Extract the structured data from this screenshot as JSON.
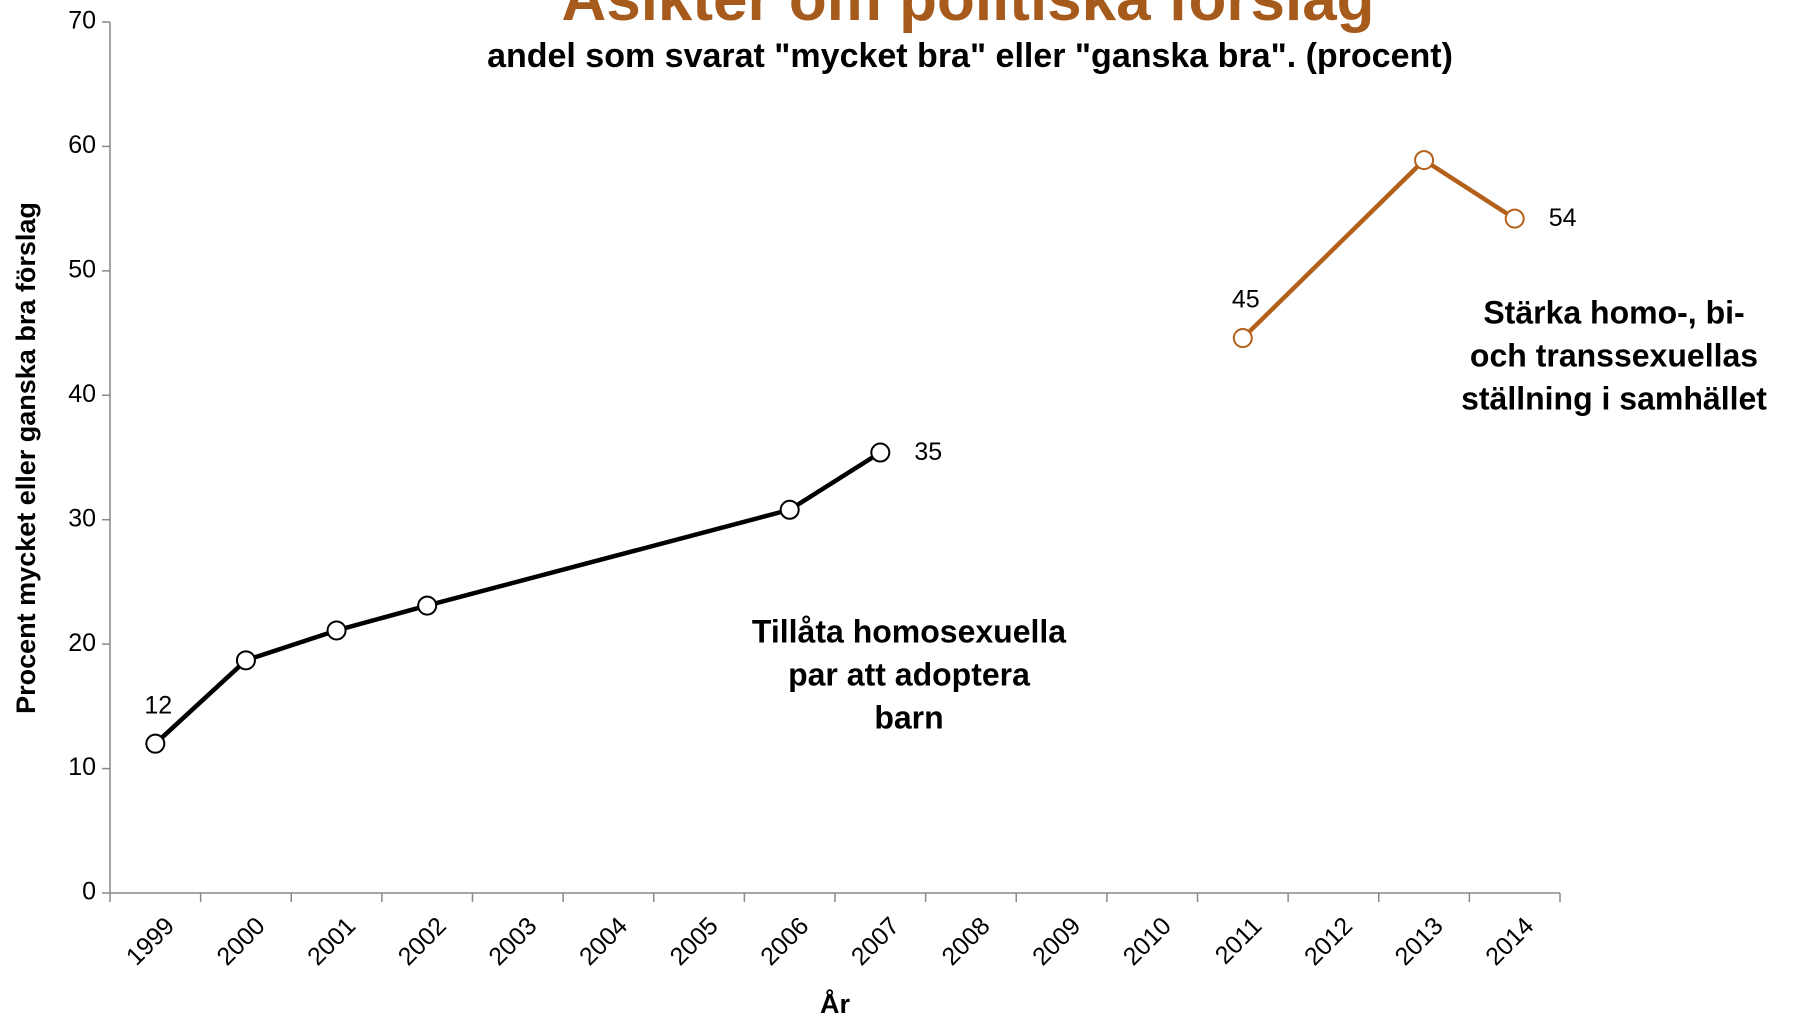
{
  "chart_data": {
    "type": "line",
    "title": "Åsikter om politiska förslag",
    "title_color": "#a65a1c",
    "subtitle": "andel som svarat \"mycket bra\" eller \"ganska bra\". (procent)",
    "y_label": "Procent mycket eller ganska bra förslag",
    "x_label": "År",
    "categories": [
      "1999",
      "2000",
      "2001",
      "2002",
      "2003",
      "2004",
      "2005",
      "2006",
      "2007",
      "2008",
      "2009",
      "2010",
      "2011",
      "2012",
      "2013",
      "2014"
    ],
    "ylim": [
      0,
      70
    ],
    "yticks": [
      0,
      10,
      20,
      30,
      40,
      50,
      60,
      70
    ],
    "series": [
      {
        "name": "Tillåta homosexuella par att adoptera barn",
        "name_lines": [
          "Tillåta homosexuella",
          "par att adoptera",
          "barn"
        ],
        "color": "#000000",
        "x": [
          "1999",
          "2000",
          "2001",
          "2002",
          "2006",
          "2007"
        ],
        "values": [
          12,
          18.7,
          21.1,
          23.1,
          30.8,
          35.4
        ],
        "value_labels": [
          "12",
          null,
          null,
          null,
          null,
          "35"
        ]
      },
      {
        "name": "Stärka homo-, bi- och transsexuellas ställning i samhället",
        "name_lines": [
          "Stärka homo-, bi-",
          "och transsexuellas",
          "ställning i samhället"
        ],
        "color": "#b3601a",
        "x": [
          "2011",
          "2013",
          "2014"
        ],
        "values": [
          44.6,
          58.9,
          54.2
        ],
        "value_labels": [
          "45",
          null,
          "54"
        ]
      }
    ]
  }
}
